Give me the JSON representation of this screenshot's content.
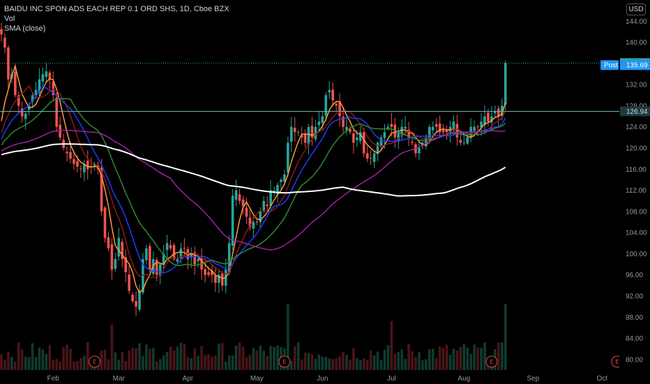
{
  "header": {
    "title": "BAIDU INC SPON ADS EACH REP 0.1 ORD SHS, 1D, Cboe BZX",
    "vol_label": "Vol",
    "sma_label": "SMA (close)",
    "currency": "USD"
  },
  "chart_data": {
    "type": "candlestick",
    "title": "BAIDU INC SPON ADS EACH REP 0.1 ORD SHS, 1D, Cboe BZX",
    "ylim": [
      78,
      148
    ],
    "y_ticks": [
      "144.00",
      "140.00",
      "136.00",
      "132.00",
      "128.00",
      "124.00",
      "120.00",
      "116.00",
      "112.00",
      "108.00",
      "104.00",
      "100.00",
      "96.00",
      "92.00",
      "88.00",
      "84.00",
      "80.00"
    ],
    "x_ticks": [
      "Feb",
      "Mar",
      "Apr",
      "May",
      "Jun",
      "Jul",
      "Aug",
      "Sep",
      "Oct"
    ],
    "x_tick_index": [
      15,
      34,
      54,
      74,
      93,
      113,
      134,
      154,
      174
    ],
    "last_price": "136.07",
    "post_label": "Post",
    "post_price": "135.69",
    "crosshair_price": "126.94",
    "crosshair_value": 126.94,
    "earnings_marker": "E",
    "earnings_index": [
      27,
      82,
      142,
      194
    ],
    "closes": [
      141.5,
      139,
      133,
      134,
      130,
      128,
      126,
      126.5,
      128,
      130,
      131,
      133,
      134,
      134.5,
      133,
      130,
      124,
      122,
      120,
      119,
      118,
      117,
      116.5,
      116,
      117,
      116,
      116.5,
      117,
      116,
      108,
      103,
      101,
      97,
      99,
      103,
      99,
      96.5,
      93,
      91,
      90,
      93,
      99,
      101,
      97,
      99,
      96,
      98,
      100,
      102,
      101,
      99,
      99,
      101,
      101,
      99,
      100,
      98,
      99,
      97,
      96,
      96,
      96,
      94.5,
      96,
      94,
      97,
      102,
      111,
      112,
      110,
      109,
      107,
      105,
      106,
      106,
      108,
      110,
      109,
      112,
      112,
      113,
      114,
      115,
      121,
      124,
      123,
      123,
      122,
      121,
      124,
      122,
      124,
      125,
      126,
      130,
      131,
      129,
      128,
      126,
      124,
      124,
      123,
      121,
      122,
      123,
      119,
      118,
      118,
      119,
      121,
      122,
      123,
      124,
      124,
      122,
      123,
      124,
      124,
      122,
      121,
      119,
      120,
      121,
      122,
      124,
      124,
      124,
      123,
      123,
      123,
      124,
      125,
      122,
      121,
      121,
      122,
      124,
      124,
      124,
      125,
      126,
      125,
      126,
      127,
      126,
      128,
      136.07
    ],
    "sma_series": [
      {
        "color": "#ff9a3c"
      },
      {
        "color": "#8b1a1a"
      },
      {
        "color": "#1c3cff"
      },
      {
        "color": "#2e8b2e"
      },
      {
        "color": "#a020a0"
      },
      {
        "color": "#ffffff"
      }
    ]
  }
}
